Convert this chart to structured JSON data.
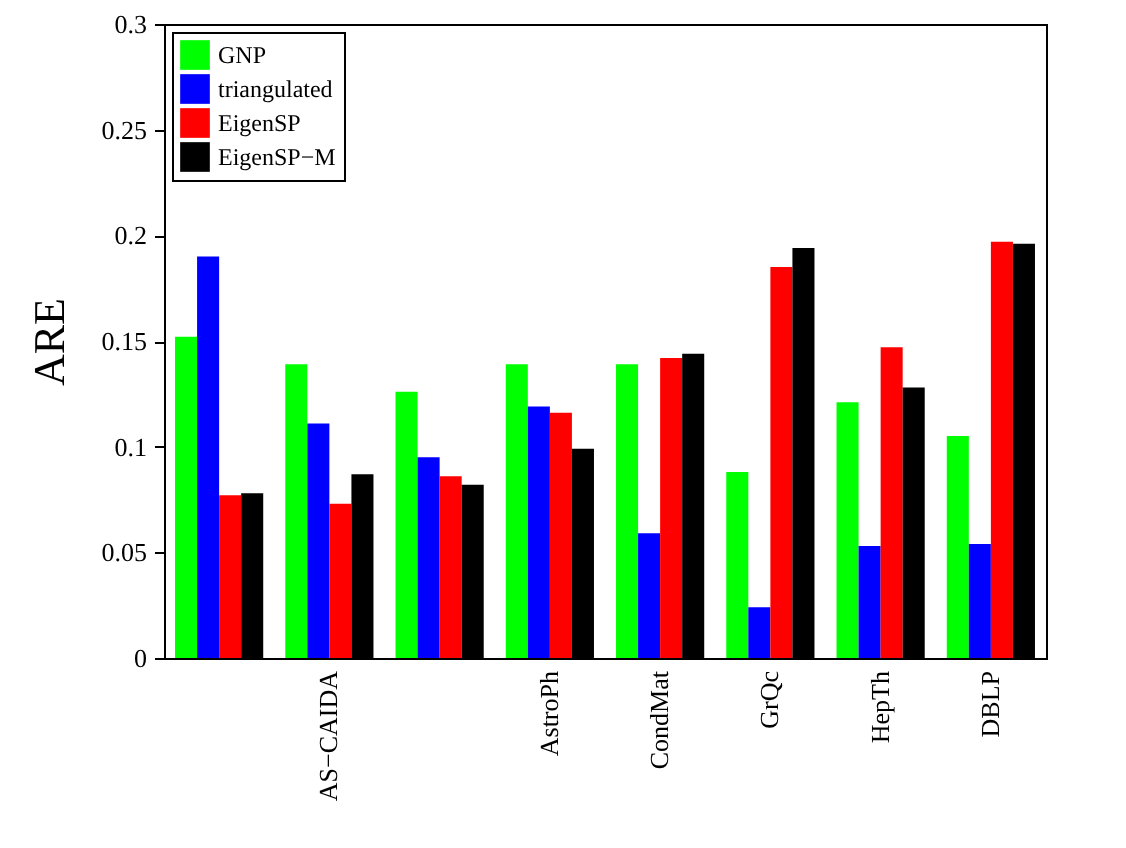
{
  "chart_data": {
    "type": "bar",
    "ylabel": "ARE",
    "categories": [
      null,
      "AS−CAIDA",
      null,
      "AstroPh",
      "CondMat",
      "GrQc",
      "HepTh",
      "DBLP"
    ],
    "series": [
      {
        "name": "GNP",
        "color": "#00ff00",
        "values": [
          0.152,
          0.139,
          0.126,
          0.139,
          0.139,
          0.088,
          0.121,
          0.105
        ]
      },
      {
        "name": "triangulated",
        "color": "#0000ff",
        "values": [
          0.19,
          0.111,
          0.095,
          0.119,
          0.059,
          0.024,
          0.053,
          0.054
        ]
      },
      {
        "name": "EigenSP",
        "color": "#ff0000",
        "values": [
          0.077,
          0.073,
          0.086,
          0.116,
          0.142,
          0.185,
          0.147,
          0.197
        ]
      },
      {
        "name": "EigenSP−M",
        "color": "#000000",
        "values": [
          0.078,
          0.087,
          0.082,
          0.099,
          0.144,
          0.194,
          0.128,
          0.196
        ]
      }
    ],
    "ylim": [
      0,
      0.3
    ],
    "yticks": [
      0,
      0.05,
      0.1,
      0.15,
      0.2,
      0.25,
      0.3
    ],
    "legend": "top left",
    "grid": false
  }
}
